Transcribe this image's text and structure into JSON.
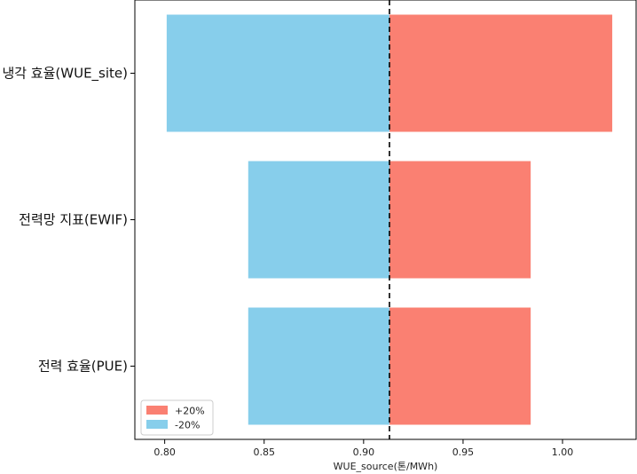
{
  "chart_data": {
    "type": "bar",
    "orientation": "horizontal",
    "subtype": "tornado",
    "baseline": 0.913,
    "xlabel": "WUE_source(톤/MWh)",
    "xlim": [
      0.785,
      1.037
    ],
    "xticks": [
      0.8,
      0.85,
      0.9,
      0.95,
      1.0
    ],
    "xtick_labels": [
      "0.80",
      "0.85",
      "0.90",
      "0.95",
      "1.00"
    ],
    "categories": [
      "냉각 효율(WUE_site)",
      "전력망 지표(EWIF)",
      "전력 효율(PUE)"
    ],
    "series": [
      {
        "name": "+20%",
        "color": "#fa8072",
        "values": [
          1.025,
          0.984,
          0.984
        ]
      },
      {
        "name": "-20%",
        "color": "#87ceeb",
        "values": [
          0.801,
          0.842,
          0.842
        ]
      }
    ],
    "legend_location": "lower-left",
    "grid": false
  }
}
